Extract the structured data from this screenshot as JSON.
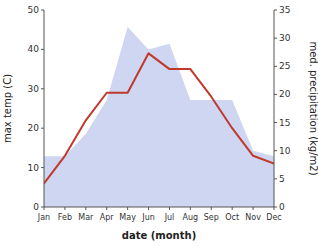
{
  "chart_data": {
    "type": "line",
    "categories": [
      "Jan",
      "Feb",
      "Mar",
      "Apr",
      "May",
      "Jun",
      "Jul",
      "Aug",
      "Sep",
      "Oct",
      "Nov",
      "Dec"
    ],
    "xlabel": "date (month)",
    "ylabel": "max temp (C)",
    "y2label": "med. precipitation (kg/m2)",
    "ylim": [
      0,
      50
    ],
    "yticks": [
      0,
      10,
      20,
      30,
      40,
      50
    ],
    "y2lim": [
      0,
      35
    ],
    "y2ticks": [
      0,
      5,
      10,
      15,
      20,
      25,
      30,
      35
    ],
    "grid": false,
    "series": [
      {
        "type": "area",
        "axis": "y2",
        "color": "#c5cff0",
        "values": [
          9,
          9,
          13,
          19,
          32,
          28,
          29,
          19,
          19,
          19,
          10,
          9
        ]
      },
      {
        "type": "line",
        "color": "#c0392b",
        "values": [
          6,
          13,
          22,
          29,
          29,
          39,
          35,
          35,
          28,
          20,
          13,
          11
        ]
      }
    ]
  }
}
